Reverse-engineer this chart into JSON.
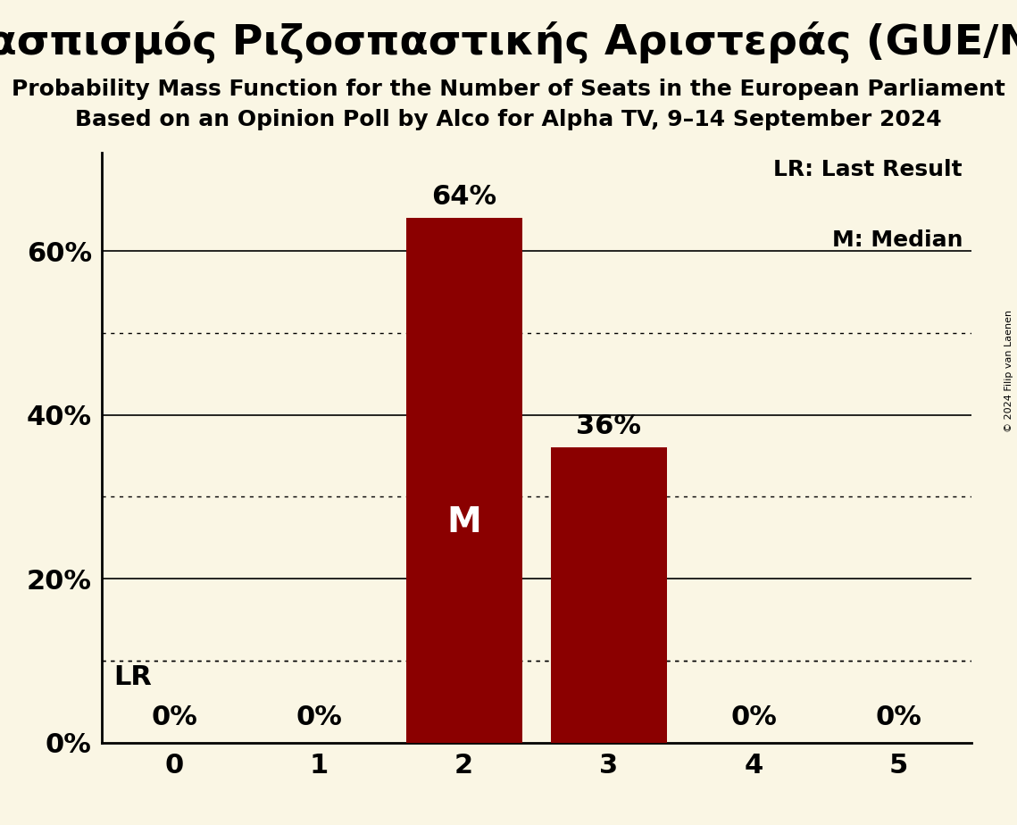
{
  "title": "Συνασπισμός Ριζοσπαστικής Αριστεράς (GUE/NGL)",
  "subtitle1": "Probability Mass Function for the Number of Seats in the European Parliament",
  "subtitle2": "Based on an Opinion Poll by Alco for Alpha TV, 9–14 September 2024",
  "copyright": "© 2024 Filip van Laenen",
  "categories": [
    0,
    1,
    2,
    3,
    4,
    5
  ],
  "values": [
    0.0,
    0.0,
    0.64,
    0.36,
    0.0,
    0.0
  ],
  "bar_color": "#8b0000",
  "background_color": "#faf6e4",
  "median_bar": 2,
  "last_result_value": 0.1,
  "ylim": [
    0,
    0.72
  ],
  "yticks": [
    0.0,
    0.2,
    0.4,
    0.6
  ],
  "ytick_labels": [
    "0%",
    "20%",
    "40%",
    "60%"
  ],
  "dotted_gridlines": [
    0.1,
    0.3,
    0.5
  ],
  "solid_gridlines": [
    0.2,
    0.4,
    0.6
  ],
  "legend_lr": "LR: Last Result",
  "legend_m": "M: Median",
  "title_fontsize": 34,
  "subtitle_fontsize": 18,
  "axis_tick_fontsize": 22,
  "bar_label_fontsize": 22,
  "legend_fontsize": 18,
  "median_label": "M",
  "lr_label": "LR"
}
